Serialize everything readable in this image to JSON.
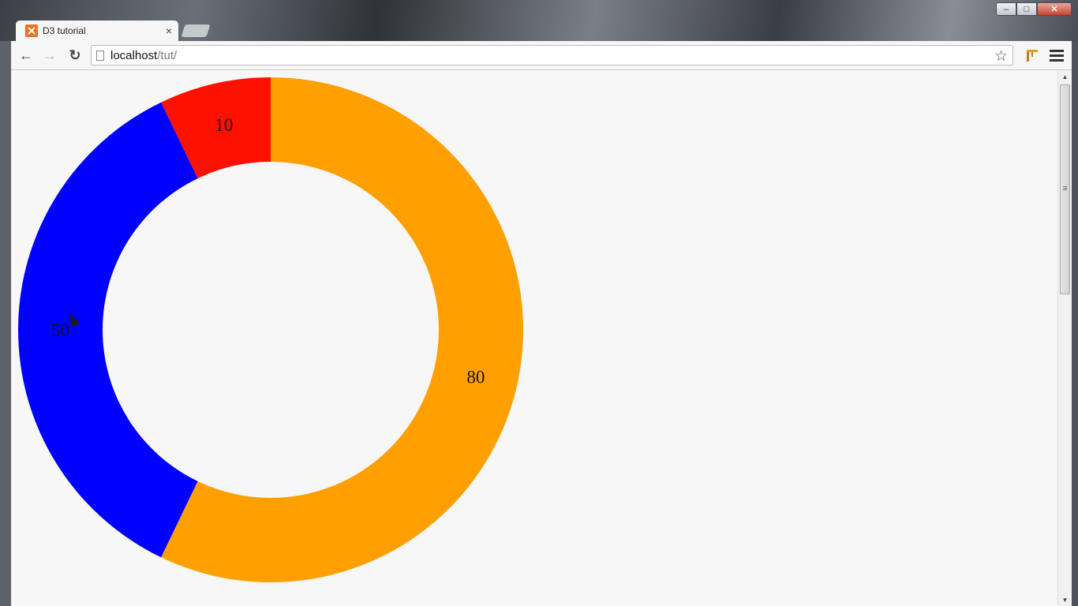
{
  "window": {
    "controls": {
      "minimize": "‒",
      "maximize": "□",
      "close": "✕"
    }
  },
  "browser": {
    "tab": {
      "title": "D3 tutorial",
      "favicon": "xampp-icon",
      "close_label": "×"
    },
    "nav": {
      "back": "←",
      "forward": "→",
      "reload": "↻"
    },
    "address": {
      "host": "localhost",
      "path": "/tut/"
    },
    "bookmark_star": "☆"
  },
  "chart_data": {
    "type": "pie",
    "variant": "donut",
    "categories": [
      "80",
      "50",
      "10"
    ],
    "values": [
      80,
      50,
      10
    ],
    "labels": [
      "80",
      "50",
      "10"
    ],
    "colors": [
      "#ffa000",
      "#0000ff",
      "#ff1100"
    ],
    "title": "",
    "start_angle_deg": 0,
    "direction": "clockwise"
  },
  "page_colors": {
    "background": "#f7f7f7"
  }
}
